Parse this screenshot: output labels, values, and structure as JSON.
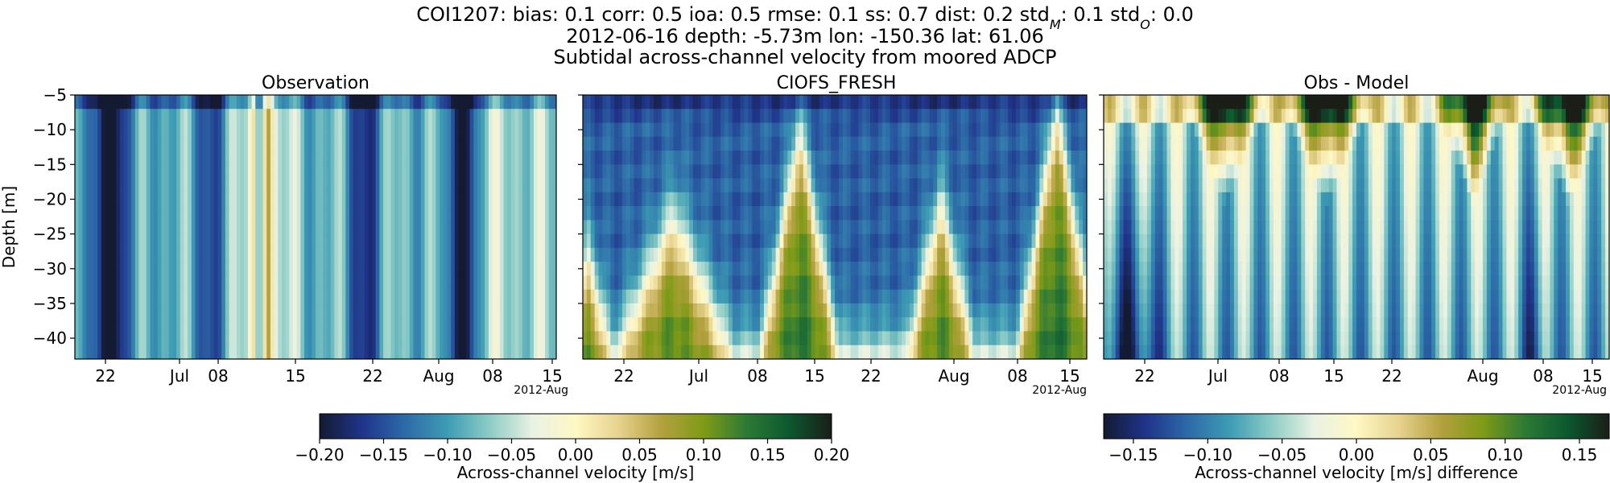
{
  "figure": {
    "title_parts": [
      {
        "t": "COI1207: bias: 0.1  corr: 0.5  ioa: 0.5  rmse: 0.1  ss: 0.7  dist: 0.2  std"
      },
      {
        "t": "M",
        "sub": true
      },
      {
        "t": ": 0.1  std"
      },
      {
        "t": "O",
        "sub": true
      },
      {
        "t": ": 0.0"
      }
    ],
    "subtitle1": "2012-06-16 depth: -5.73m lon: -150.36 lat: 61.06",
    "subtitle2": "Subtidal across-channel velocity from moored ADCP"
  },
  "colormap": [
    "#131a32",
    "#20348a",
    "#2d6aa8",
    "#3d9cb4",
    "#8ecdc6",
    "#eaf2e4",
    "#fff8c4",
    "#e7d38e",
    "#b4a13f",
    "#7e9b16",
    "#2d7a35",
    "#0c5930",
    "#1a1e17"
  ],
  "chart_data": [
    {
      "type": "heatmap",
      "title": "Observation",
      "ylabel": "Depth [m]",
      "x_ticks": [
        "22",
        "Jul",
        "08",
        "15",
        "22",
        "Aug",
        "08",
        "15"
      ],
      "x_offset_label": "2012-Aug",
      "y_ticks": [
        -5,
        -10,
        -15,
        -20,
        -25,
        -30,
        -35,
        -40
      ],
      "ylim": [
        -43,
        -5
      ],
      "x_range": [
        "2012-06-16",
        "2012-08-17"
      ],
      "color_range": [
        -0.2,
        0.2
      ]
    },
    {
      "type": "heatmap",
      "title": "CIOFS_FRESH",
      "ylabel": "",
      "x_ticks": [
        "22",
        "Jul",
        "08",
        "15",
        "22",
        "Aug",
        "08",
        "15"
      ],
      "x_offset_label": "2012-Aug",
      "ylim": [
        -43,
        -5
      ],
      "x_range": [
        "2012-06-16",
        "2012-08-17"
      ],
      "color_range": [
        -0.2,
        0.2
      ]
    },
    {
      "type": "heatmap",
      "title": "Obs - Model",
      "ylabel": "",
      "x_ticks": [
        "22",
        "Jul",
        "08",
        "15",
        "22",
        "Aug",
        "08",
        "15"
      ],
      "x_offset_label": "2012-Aug",
      "ylim": [
        -43,
        -5
      ],
      "x_range": [
        "2012-06-16",
        "2012-08-17"
      ],
      "color_range": [
        -0.17,
        0.17
      ]
    }
  ],
  "colorbars": [
    {
      "label": "Across-channel velocity [m/s]",
      "ticks": [
        "−0.20",
        "−0.15",
        "−0.10",
        "−0.05",
        "0.00",
        "0.05",
        "0.10",
        "0.15",
        "0.20"
      ]
    },
    {
      "label": "Across-channel velocity [m/s] difference",
      "ticks": [
        "−0.15",
        "−0.10",
        "−0.05",
        "0.00",
        "0.05",
        "0.10",
        "0.15"
      ]
    }
  ]
}
